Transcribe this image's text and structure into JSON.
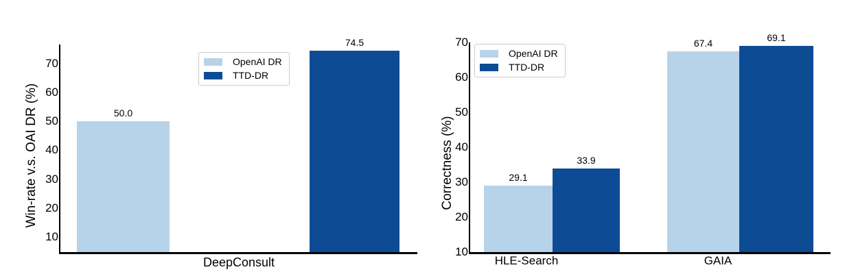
{
  "page": {
    "background": "#ffffff"
  },
  "legend": {
    "items": [
      {
        "label": "OpenAI DR",
        "color": "#B7D3EA"
      },
      {
        "label": "TTD-DR",
        "color": "#0D4C94"
      }
    ]
  },
  "chart_data": [
    {
      "type": "bar",
      "title": "",
      "ylabel": "Win-rate v.s. OAI DR (%)",
      "xlabel": "DeepConsult",
      "categories": [
        "DeepConsult"
      ],
      "series": [
        {
          "name": "OpenAI DR",
          "color": "#B7D3EA",
          "values": [
            50.0
          ]
        },
        {
          "name": "TTD-DR",
          "color": "#0D4C94",
          "values": [
            74.5
          ]
        }
      ],
      "yticks": [
        10,
        20,
        30,
        40,
        50,
        60,
        70
      ],
      "ylim": [
        4.8,
        76.6
      ],
      "grid": false,
      "value_labels": true,
      "legend_position": "upper-center"
    },
    {
      "type": "bar",
      "title": "",
      "ylabel": "Correctness (%)",
      "xlabel": "",
      "categories": [
        "HLE-Search",
        "GAIA"
      ],
      "series": [
        {
          "name": "OpenAI DR",
          "color": "#B7D3EA",
          "values": [
            29.1,
            67.4
          ]
        },
        {
          "name": "TTD-DR",
          "color": "#0D4C94",
          "values": [
            33.9,
            69.1
          ]
        }
      ],
      "yticks": [
        10,
        20,
        30,
        40,
        50,
        60,
        70
      ],
      "ylim": [
        10,
        70
      ],
      "grid": false,
      "value_labels": true,
      "legend_position": "upper-left"
    }
  ]
}
